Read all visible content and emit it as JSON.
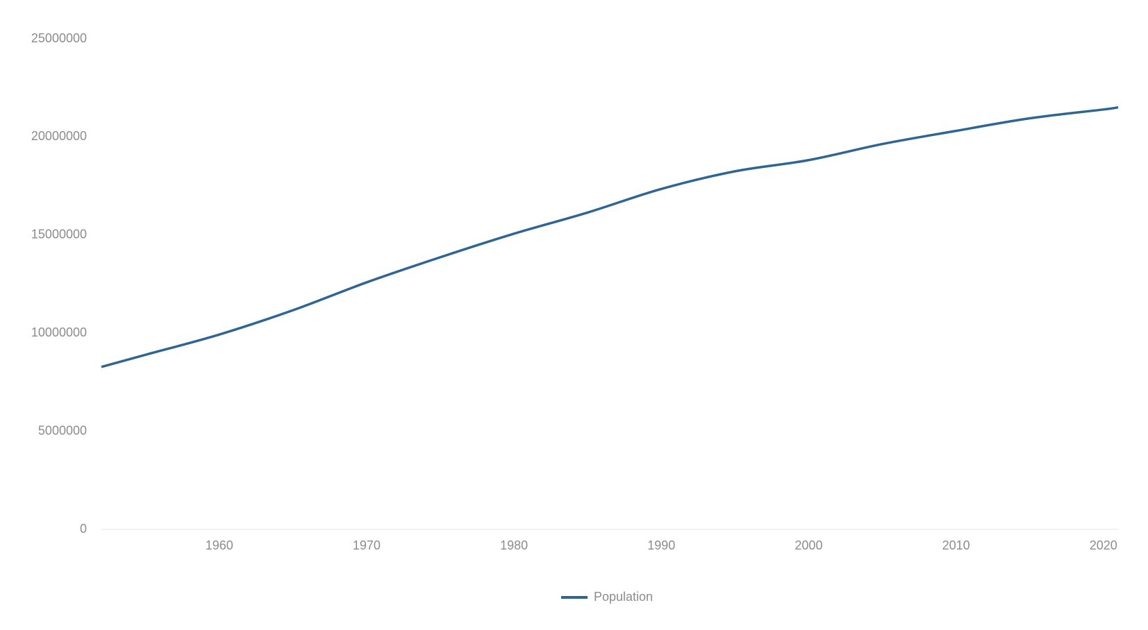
{
  "chart_data": {
    "type": "line",
    "x": [
      1952,
      1955,
      1960,
      1965,
      1970,
      1975,
      1980,
      1985,
      1990,
      1995,
      2000,
      2005,
      2010,
      2015,
      2020,
      2021
    ],
    "series": [
      {
        "name": "Population",
        "color": "#2e6592",
        "values": [
          8280000,
          8900000,
          9930000,
          11170000,
          12590000,
          13870000,
          15070000,
          16150000,
          17350000,
          18250000,
          18820000,
          19640000,
          20310000,
          20950000,
          21400000,
          21510000
        ]
      }
    ],
    "xlim": [
      1952,
      2021
    ],
    "xticks": [
      1960,
      1970,
      1980,
      1990,
      2000,
      2010,
      2020
    ],
    "ylim": [
      0,
      25000000
    ],
    "yticks": [
      0,
      5000000,
      10000000,
      15000000,
      20000000,
      25000000
    ],
    "grid": false,
    "legend": "bottom"
  }
}
